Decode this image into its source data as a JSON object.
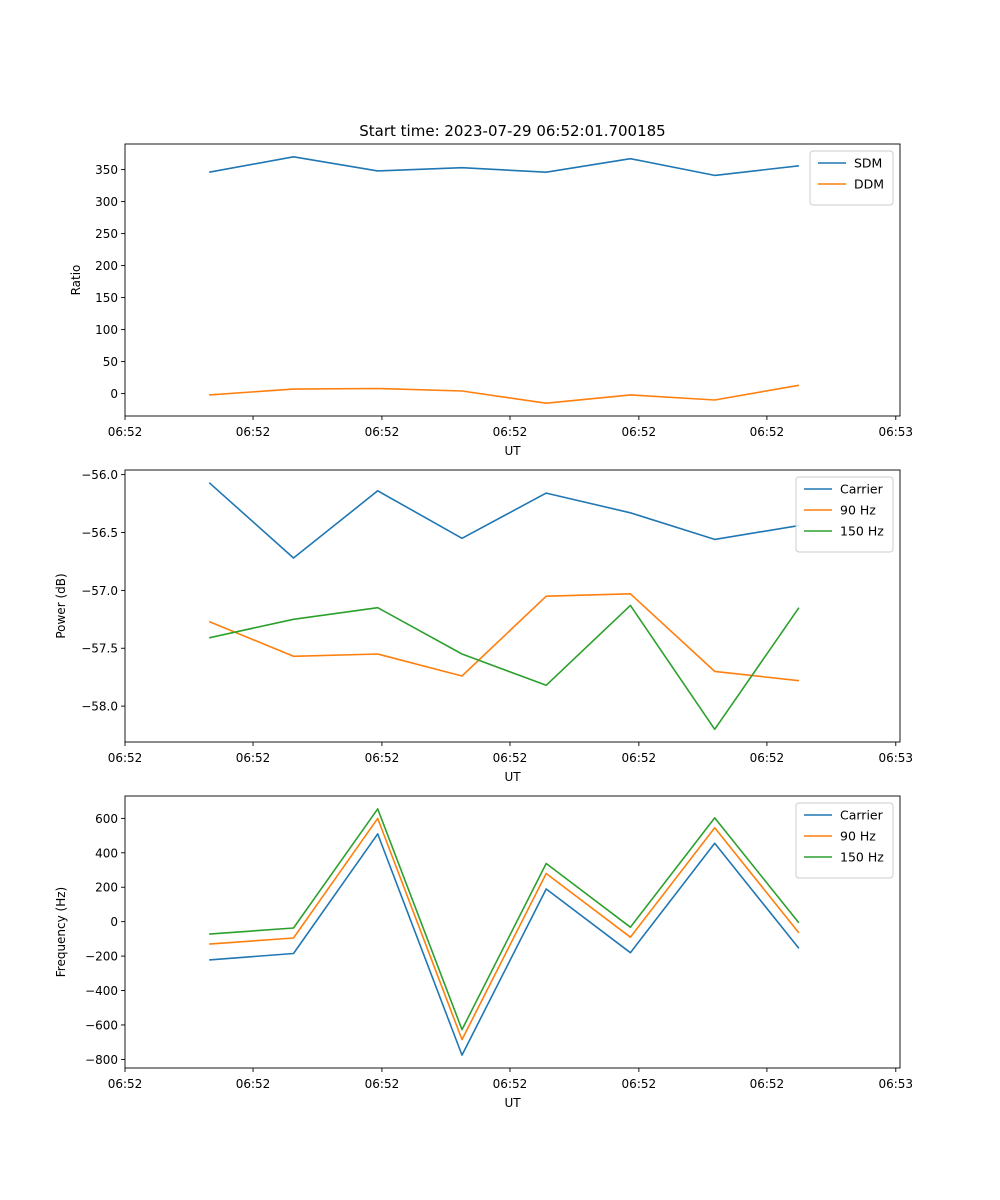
{
  "figure": {
    "title": "Start time: 2023-07-29 06:52:01.700185"
  },
  "chart_data": [
    {
      "type": "line",
      "ylabel": "Ratio",
      "xlabel": "UT",
      "ylim": [
        -35,
        390
      ],
      "yticks": [
        0,
        50,
        100,
        150,
        200,
        250,
        300,
        350
      ],
      "ytick_labels": [
        "0",
        "50",
        "100",
        "150",
        "200",
        "250",
        "300",
        "350"
      ],
      "x": [
        1.0,
        2.0,
        3.0,
        4.0,
        5.0,
        6.0,
        7.0,
        8.0
      ],
      "xlim": [
        0,
        9.2
      ],
      "xticks": [
        0,
        1.52,
        3.05,
        4.57,
        6.1,
        7.62,
        9.15
      ],
      "xtick_labels": [
        "06:52",
        "06:52",
        "06:52",
        "06:52",
        "06:52",
        "06:52",
        "06:53"
      ],
      "legend": "top-right",
      "series": [
        {
          "name": "SDM",
          "color": "#1f77b4",
          "values": [
            346,
            370,
            348,
            353,
            346,
            367,
            341,
            356
          ]
        },
        {
          "name": "DDM",
          "color": "#ff7f0e",
          "values": [
            -2,
            7,
            8,
            4,
            -15,
            -2,
            -10,
            13
          ]
        }
      ]
    },
    {
      "type": "line",
      "ylabel": "Power (dB)",
      "xlabel": "UT",
      "ylim": [
        -58.31,
        -55.96
      ],
      "yticks": [
        -58.0,
        -57.5,
        -57.0,
        -56.5,
        -56.0
      ],
      "ytick_labels": [
        "−58.0",
        "−57.5",
        "−57.0",
        "−56.5",
        "−56.0"
      ],
      "x": [
        1.0,
        2.0,
        3.0,
        4.0,
        5.0,
        6.0,
        7.0,
        8.0
      ],
      "xlim": [
        0,
        9.2
      ],
      "xticks": [
        0,
        1.52,
        3.05,
        4.57,
        6.1,
        7.62,
        9.15
      ],
      "xtick_labels": [
        "06:52",
        "06:52",
        "06:52",
        "06:52",
        "06:52",
        "06:52",
        "06:53"
      ],
      "legend": "top-right",
      "series": [
        {
          "name": "Carrier",
          "color": "#1f77b4",
          "values": [
            -56.07,
            -56.72,
            -56.14,
            -56.55,
            -56.16,
            -56.33,
            -56.56,
            -56.44
          ]
        },
        {
          "name": "90 Hz",
          "color": "#ff7f0e",
          "values": [
            -57.27,
            -57.57,
            -57.55,
            -57.74,
            -57.05,
            -57.03,
            -57.7,
            -57.78
          ]
        },
        {
          "name": "150 Hz",
          "color": "#2ca02c",
          "values": [
            -57.41,
            -57.25,
            -57.15,
            -57.55,
            -57.82,
            -57.13,
            -58.2,
            -57.15
          ]
        }
      ]
    },
    {
      "type": "line",
      "ylabel": "Frequency (Hz)",
      "xlabel": "UT",
      "ylim": [
        -850,
        730
      ],
      "yticks": [
        -800,
        -600,
        -400,
        -200,
        0,
        200,
        400,
        600
      ],
      "ytick_labels": [
        "−800",
        "−600",
        "−400",
        "−200",
        "0",
        "200",
        "400",
        "600"
      ],
      "x": [
        1.0,
        2.0,
        3.0,
        4.0,
        5.0,
        6.0,
        7.0,
        8.0
      ],
      "xlim": [
        0,
        9.2
      ],
      "xticks": [
        0,
        1.52,
        3.05,
        4.57,
        6.1,
        7.62,
        9.15
      ],
      "xtick_labels": [
        "06:52",
        "06:52",
        "06:52",
        "06:52",
        "06:52",
        "06:52",
        "06:53"
      ],
      "legend": "top-right",
      "series": [
        {
          "name": "Carrier",
          "color": "#1f77b4",
          "values": [
            -222,
            -185,
            510,
            -775,
            190,
            -180,
            455,
            -155
          ]
        },
        {
          "name": "90 Hz",
          "color": "#ff7f0e",
          "values": [
            -130,
            -95,
            600,
            -685,
            280,
            -90,
            545,
            -65
          ]
        },
        {
          "name": "150 Hz",
          "color": "#2ca02c",
          "values": [
            -72,
            -37,
            655,
            -627,
            338,
            -32,
            603,
            -7
          ]
        }
      ]
    }
  ]
}
